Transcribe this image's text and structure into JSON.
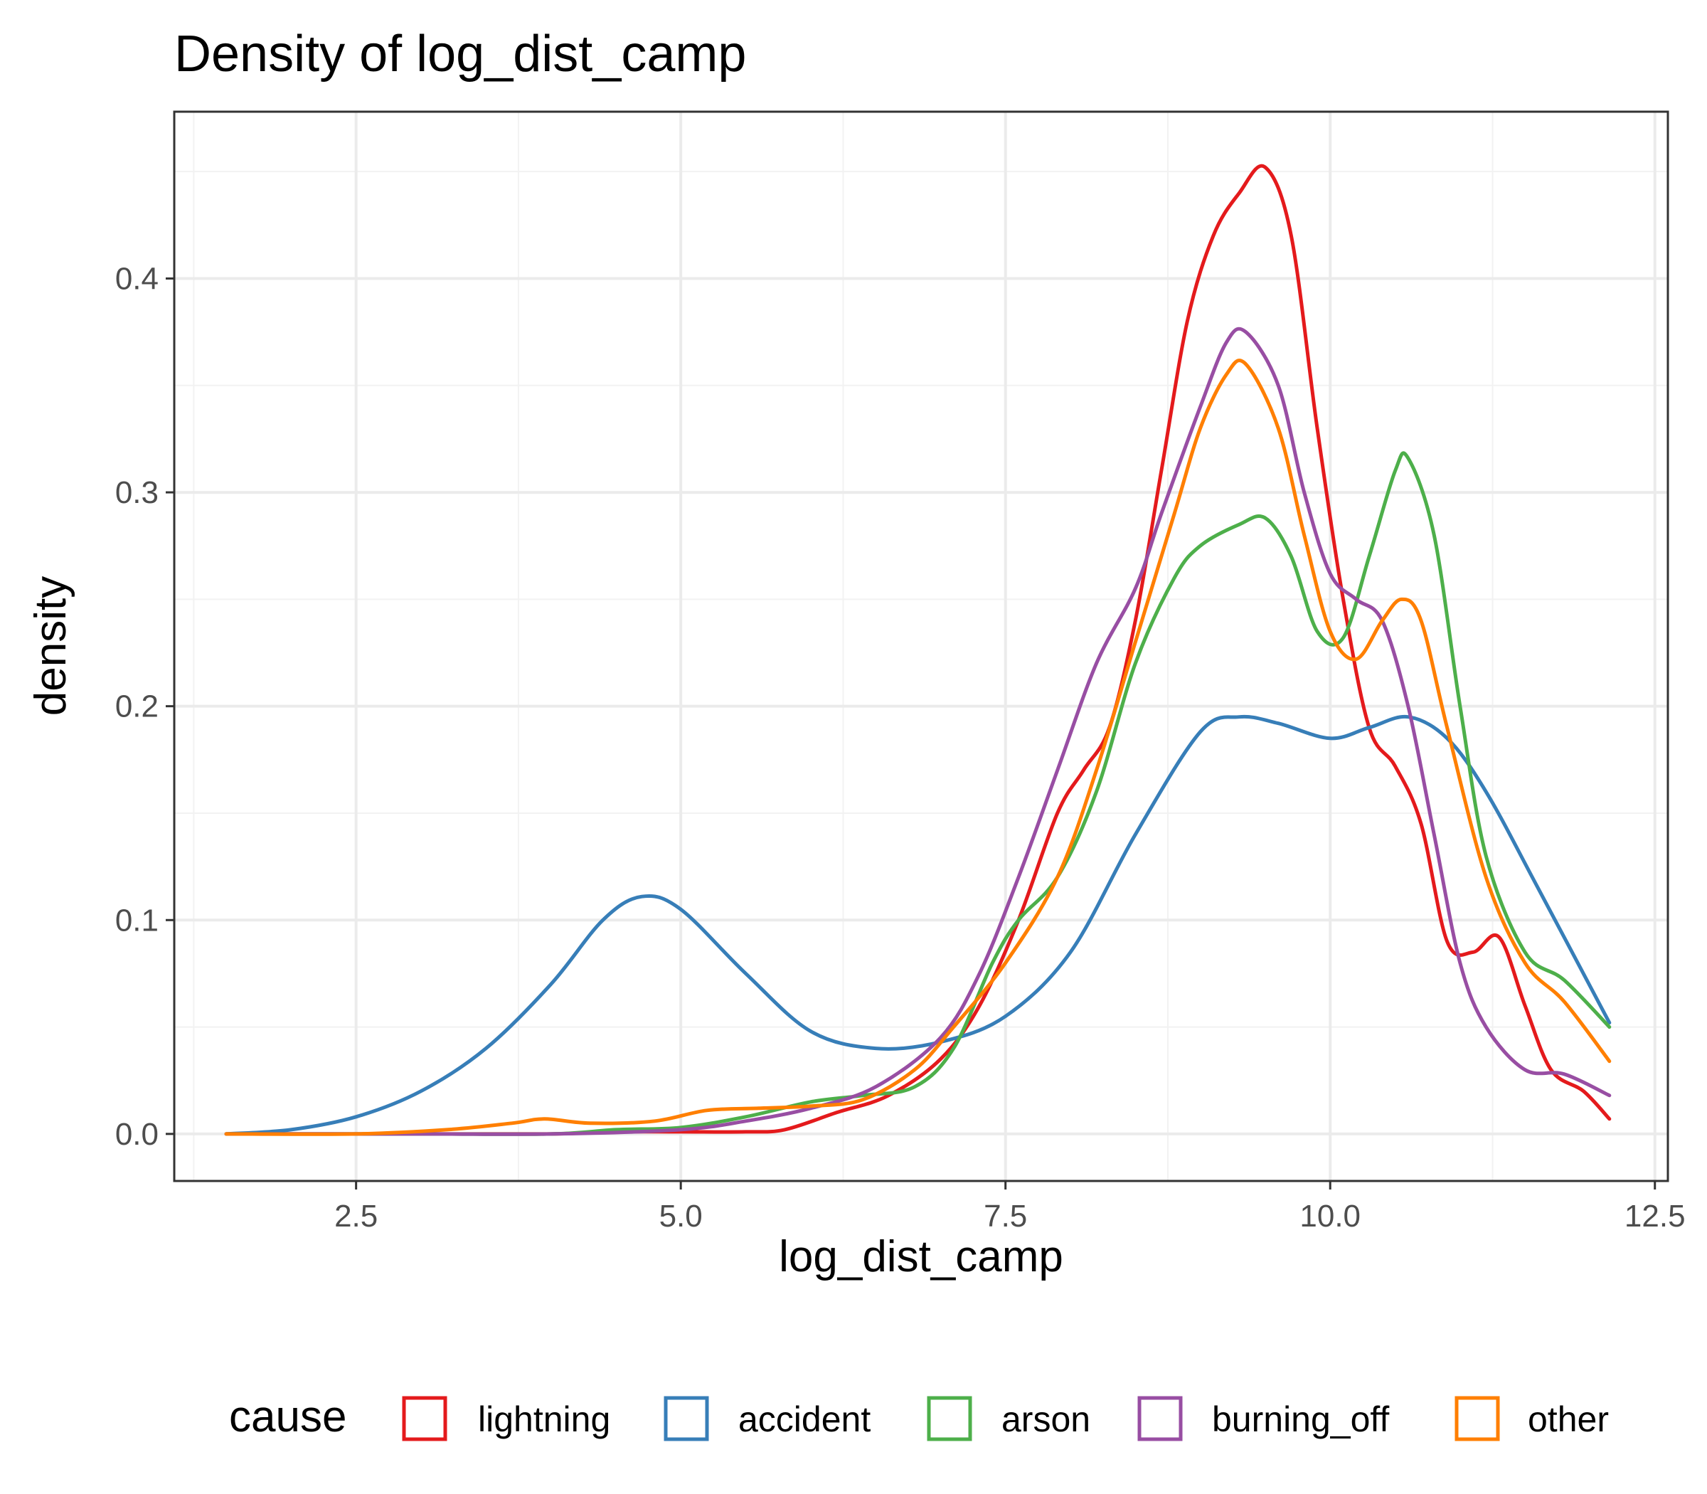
{
  "chart_data": {
    "type": "line",
    "title": "Density of log_dist_camp",
    "xlabel": "log_dist_camp",
    "ylabel": "density",
    "xlim": [
      1.1,
      12.6
    ],
    "ylim": [
      -0.022,
      0.478
    ],
    "x_ticks": [
      2.5,
      5.0,
      7.5,
      10.0,
      12.5
    ],
    "x_tick_labels": [
      "2.5",
      "5.0",
      "7.5",
      "10.0",
      "12.5"
    ],
    "y_ticks": [
      0.0,
      0.1,
      0.2,
      0.3,
      0.4
    ],
    "y_tick_labels": [
      "0.0",
      "0.1",
      "0.2",
      "0.3",
      "0.4"
    ],
    "grid": true,
    "legend": {
      "title": "cause",
      "position": "bottom"
    },
    "series": [
      {
        "name": "lightning",
        "color": "#E41A1C",
        "points": [
          [
            1.5,
            0.0
          ],
          [
            3.0,
            0.0
          ],
          [
            4.0,
            0.0
          ],
          [
            4.5,
            0.001
          ],
          [
            5.0,
            0.001
          ],
          [
            5.5,
            0.001
          ],
          [
            5.8,
            0.002
          ],
          [
            6.2,
            0.01
          ],
          [
            6.6,
            0.018
          ],
          [
            7.0,
            0.035
          ],
          [
            7.3,
            0.06
          ],
          [
            7.6,
            0.1
          ],
          [
            7.9,
            0.15
          ],
          [
            8.1,
            0.17
          ],
          [
            8.3,
            0.19
          ],
          [
            8.5,
            0.24
          ],
          [
            8.7,
            0.31
          ],
          [
            8.9,
            0.38
          ],
          [
            9.1,
            0.42
          ],
          [
            9.3,
            0.44
          ],
          [
            9.5,
            0.452
          ],
          [
            9.7,
            0.42
          ],
          [
            9.9,
            0.33
          ],
          [
            10.1,
            0.25
          ],
          [
            10.3,
            0.19
          ],
          [
            10.5,
            0.172
          ],
          [
            10.7,
            0.145
          ],
          [
            10.9,
            0.09
          ],
          [
            11.1,
            0.085
          ],
          [
            11.3,
            0.092
          ],
          [
            11.5,
            0.06
          ],
          [
            11.7,
            0.03
          ],
          [
            11.95,
            0.02
          ],
          [
            12.15,
            0.007
          ]
        ]
      },
      {
        "name": "accident",
        "color": "#377EB8",
        "points": [
          [
            1.5,
            0.0
          ],
          [
            2.0,
            0.002
          ],
          [
            2.5,
            0.008
          ],
          [
            3.0,
            0.02
          ],
          [
            3.5,
            0.04
          ],
          [
            4.0,
            0.07
          ],
          [
            4.4,
            0.1
          ],
          [
            4.7,
            0.111
          ],
          [
            5.0,
            0.105
          ],
          [
            5.5,
            0.075
          ],
          [
            6.0,
            0.048
          ],
          [
            6.5,
            0.04
          ],
          [
            7.0,
            0.043
          ],
          [
            7.5,
            0.055
          ],
          [
            8.0,
            0.085
          ],
          [
            8.5,
            0.14
          ],
          [
            9.0,
            0.188
          ],
          [
            9.3,
            0.195
          ],
          [
            9.6,
            0.192
          ],
          [
            10.0,
            0.185
          ],
          [
            10.3,
            0.19
          ],
          [
            10.6,
            0.195
          ],
          [
            10.9,
            0.185
          ],
          [
            11.2,
            0.16
          ],
          [
            11.6,
            0.115
          ],
          [
            12.15,
            0.052
          ]
        ]
      },
      {
        "name": "arson",
        "color": "#4DAF4A",
        "points": [
          [
            1.5,
            0.0
          ],
          [
            3.0,
            0.0
          ],
          [
            4.0,
            0.0
          ],
          [
            4.5,
            0.002
          ],
          [
            5.0,
            0.003
          ],
          [
            5.5,
            0.008
          ],
          [
            6.0,
            0.015
          ],
          [
            6.4,
            0.018
          ],
          [
            6.8,
            0.022
          ],
          [
            7.1,
            0.04
          ],
          [
            7.4,
            0.08
          ],
          [
            7.6,
            0.1
          ],
          [
            7.9,
            0.12
          ],
          [
            8.2,
            0.16
          ],
          [
            8.5,
            0.22
          ],
          [
            8.8,
            0.26
          ],
          [
            9.0,
            0.275
          ],
          [
            9.3,
            0.285
          ],
          [
            9.5,
            0.288
          ],
          [
            9.7,
            0.27
          ],
          [
            9.9,
            0.235
          ],
          [
            10.1,
            0.232
          ],
          [
            10.3,
            0.27
          ],
          [
            10.5,
            0.31
          ],
          [
            10.6,
            0.316
          ],
          [
            10.8,
            0.28
          ],
          [
            11.0,
            0.2
          ],
          [
            11.2,
            0.13
          ],
          [
            11.5,
            0.085
          ],
          [
            11.8,
            0.072
          ],
          [
            12.15,
            0.05
          ]
        ]
      },
      {
        "name": "burning_off",
        "color": "#984EA3",
        "points": [
          [
            1.5,
            0.0
          ],
          [
            3.0,
            0.0
          ],
          [
            4.0,
            0.0
          ],
          [
            5.0,
            0.002
          ],
          [
            5.5,
            0.006
          ],
          [
            6.0,
            0.012
          ],
          [
            6.5,
            0.022
          ],
          [
            7.0,
            0.045
          ],
          [
            7.3,
            0.075
          ],
          [
            7.6,
            0.12
          ],
          [
            7.9,
            0.17
          ],
          [
            8.2,
            0.22
          ],
          [
            8.5,
            0.255
          ],
          [
            8.7,
            0.29
          ],
          [
            9.0,
            0.34
          ],
          [
            9.2,
            0.37
          ],
          [
            9.35,
            0.375
          ],
          [
            9.6,
            0.35
          ],
          [
            9.8,
            0.3
          ],
          [
            10.0,
            0.262
          ],
          [
            10.2,
            0.25
          ],
          [
            10.4,
            0.24
          ],
          [
            10.6,
            0.2
          ],
          [
            10.8,
            0.14
          ],
          [
            11.0,
            0.08
          ],
          [
            11.2,
            0.05
          ],
          [
            11.5,
            0.03
          ],
          [
            11.8,
            0.028
          ],
          [
            12.15,
            0.018
          ]
        ]
      },
      {
        "name": "other",
        "color": "#FF7F00",
        "points": [
          [
            1.5,
            0.0
          ],
          [
            2.5,
            0.0
          ],
          [
            3.2,
            0.002
          ],
          [
            3.7,
            0.005
          ],
          [
            3.95,
            0.007
          ],
          [
            4.3,
            0.005
          ],
          [
            4.8,
            0.006
          ],
          [
            5.2,
            0.011
          ],
          [
            5.6,
            0.012
          ],
          [
            6.0,
            0.013
          ],
          [
            6.4,
            0.016
          ],
          [
            6.8,
            0.03
          ],
          [
            7.1,
            0.05
          ],
          [
            7.5,
            0.08
          ],
          [
            7.9,
            0.12
          ],
          [
            8.2,
            0.17
          ],
          [
            8.5,
            0.23
          ],
          [
            8.8,
            0.29
          ],
          [
            9.0,
            0.33
          ],
          [
            9.2,
            0.355
          ],
          [
            9.35,
            0.36
          ],
          [
            9.6,
            0.33
          ],
          [
            9.8,
            0.28
          ],
          [
            10.0,
            0.235
          ],
          [
            10.2,
            0.222
          ],
          [
            10.4,
            0.24
          ],
          [
            10.55,
            0.25
          ],
          [
            10.7,
            0.24
          ],
          [
            10.9,
            0.19
          ],
          [
            11.2,
            0.12
          ],
          [
            11.5,
            0.08
          ],
          [
            11.8,
            0.062
          ],
          [
            12.15,
            0.034
          ]
        ]
      }
    ]
  }
}
